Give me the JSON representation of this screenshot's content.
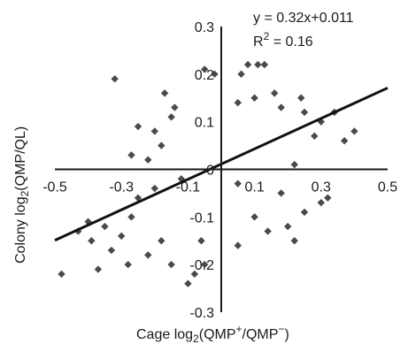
{
  "chart_data": {
    "type": "scatter",
    "xlim": [
      -0.5,
      0.5
    ],
    "ylim": [
      -0.3,
      0.3
    ],
    "x_ticks": [
      "-0.5",
      "-0.3",
      "-0.1",
      "0.1",
      "0.3",
      "0.5"
    ],
    "y_ticks": [
      "-0.3",
      "-0.2",
      "-0.1",
      "0",
      "0.1",
      "0.2",
      "0.3"
    ],
    "xlabel": {
      "pre": "Cage log",
      "sub": "2",
      "mid": "(QMP",
      "sup1": "+",
      "mid2": "/QMP",
      "sup2": "−",
      "post": ")"
    },
    "ylabel": {
      "pre": "Colony log",
      "sub": "2",
      "post": "(QMP/QL)"
    },
    "equation": "y = 0.32x+0.011",
    "r2": {
      "pre": "R",
      "sup": "2",
      "post": " = 0.16"
    },
    "fit": {
      "slope": 0.32,
      "intercept": 0.011,
      "x_range": [
        -0.5,
        0.5
      ]
    },
    "marker_color": "#4a4a4a",
    "line_color": "#111111",
    "grid": false,
    "points": [
      [
        -0.32,
        0.19
      ],
      [
        -0.05,
        0.21
      ],
      [
        0.08,
        0.22
      ],
      [
        0.11,
        0.22
      ],
      [
        0.13,
        0.22
      ],
      [
        0.06,
        0.2
      ],
      [
        -0.02,
        0.2
      ],
      [
        -0.17,
        0.16
      ],
      [
        0.16,
        0.16
      ],
      [
        -0.14,
        0.13
      ],
      [
        0.05,
        0.14
      ],
      [
        0.1,
        0.15
      ],
      [
        0.18,
        0.13
      ],
      [
        0.24,
        0.15
      ],
      [
        0.4,
        0.08
      ],
      [
        0.34,
        0.12
      ],
      [
        0.37,
        0.06
      ],
      [
        -0.27,
        0.03
      ],
      [
        -0.22,
        0.02
      ],
      [
        -0.12,
        -0.02
      ],
      [
        0.22,
        0.01
      ],
      [
        0.3,
        0.1
      ],
      [
        -0.2,
        0.08
      ],
      [
        -0.25,
        0.09
      ],
      [
        -0.18,
        0.05
      ],
      [
        -0.15,
        0.11
      ],
      [
        0.25,
        0.12
      ],
      [
        0.28,
        0.07
      ],
      [
        -0.48,
        -0.22
      ],
      [
        -0.37,
        -0.21
      ],
      [
        -0.28,
        -0.2
      ],
      [
        -0.33,
        -0.17
      ],
      [
        -0.39,
        -0.15
      ],
      [
        -0.3,
        -0.14
      ],
      [
        -0.22,
        -0.18
      ],
      [
        -0.15,
        -0.2
      ],
      [
        -0.08,
        -0.22
      ],
      [
        -0.05,
        -0.2
      ],
      [
        0.05,
        -0.16
      ],
      [
        0.14,
        -0.13
      ],
      [
        0.2,
        -0.12
      ],
      [
        0.25,
        -0.09
      ],
      [
        0.3,
        -0.07
      ],
      [
        0.32,
        -0.06
      ],
      [
        -0.4,
        -0.11
      ],
      [
        -0.35,
        -0.12
      ],
      [
        -0.2,
        -0.04
      ],
      [
        -0.25,
        -0.06
      ],
      [
        0.18,
        -0.05
      ],
      [
        0.1,
        -0.1
      ],
      [
        -0.1,
        -0.24
      ],
      [
        0.05,
        -0.03
      ],
      [
        -0.43,
        -0.13
      ],
      [
        0.22,
        -0.15
      ],
      [
        -0.27,
        -0.1
      ],
      [
        -0.18,
        -0.15
      ],
      [
        -0.06,
        -0.15
      ]
    ]
  }
}
